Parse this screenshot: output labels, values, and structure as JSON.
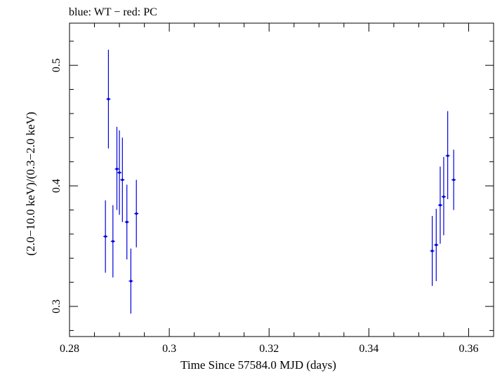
{
  "chart_data": {
    "type": "scatter",
    "title": "blue: WT − red: PC",
    "xlabel": "Time Since 57584.0 MJD (days)",
    "ylabel": "(2.0−10.0 keV)/(0.3−2.0 keV)",
    "xlim": [
      0.28,
      0.365
    ],
    "ylim": [
      0.275,
      0.535
    ],
    "xticks": [
      0.28,
      0.3,
      0.32,
      0.34,
      0.36
    ],
    "xtick_labels": [
      "0.28",
      "0.3",
      "0.32",
      "0.34",
      "0.36"
    ],
    "yticks": [
      0.3,
      0.4,
      0.5
    ],
    "ytick_labels": [
      "0.3",
      "0.4",
      "0.5"
    ],
    "grid": false,
    "series": [
      {
        "color": "#0000dd",
        "points": [
          {
            "x": 0.2872,
            "y": 0.358,
            "ylo": 0.328,
            "yhi": 0.388
          },
          {
            "x": 0.2878,
            "y": 0.472,
            "ylo": 0.431,
            "yhi": 0.513
          },
          {
            "x": 0.2887,
            "y": 0.354,
            "ylo": 0.324,
            "yhi": 0.384
          },
          {
            "x": 0.2895,
            "y": 0.414,
            "ylo": 0.38,
            "yhi": 0.449
          },
          {
            "x": 0.29,
            "y": 0.411,
            "ylo": 0.376,
            "yhi": 0.446
          },
          {
            "x": 0.2906,
            "y": 0.405,
            "ylo": 0.37,
            "yhi": 0.44
          },
          {
            "x": 0.2915,
            "y": 0.37,
            "ylo": 0.339,
            "yhi": 0.401
          },
          {
            "x": 0.2923,
            "y": 0.321,
            "ylo": 0.294,
            "yhi": 0.348
          },
          {
            "x": 0.2934,
            "y": 0.377,
            "ylo": 0.349,
            "yhi": 0.405
          },
          {
            "x": 0.3527,
            "y": 0.346,
            "ylo": 0.317,
            "yhi": 0.375
          },
          {
            "x": 0.3535,
            "y": 0.351,
            "ylo": 0.321,
            "yhi": 0.381
          },
          {
            "x": 0.3543,
            "y": 0.384,
            "ylo": 0.352,
            "yhi": 0.416
          },
          {
            "x": 0.355,
            "y": 0.391,
            "ylo": 0.359,
            "yhi": 0.424
          },
          {
            "x": 0.3558,
            "y": 0.425,
            "ylo": 0.389,
            "yhi": 0.462
          },
          {
            "x": 0.357,
            "y": 0.405,
            "ylo": 0.38,
            "yhi": 0.43
          }
        ]
      }
    ]
  }
}
